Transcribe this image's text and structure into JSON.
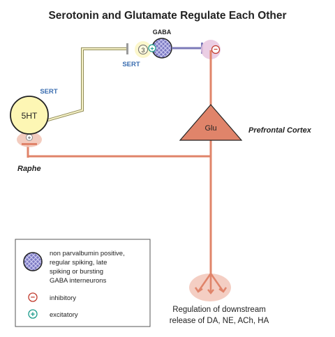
{
  "title": "Serotonin and Glutamate Regulate Each Other",
  "labels": {
    "gaba": "GABA",
    "sert_top": "SERT",
    "sert_left": "SERT",
    "receptor_3": "3",
    "neuron_5ht": "5HT",
    "glu": "Glu",
    "prefrontal_cortex": "Prefrontal Cortex",
    "raphe": "Raphe",
    "downstream_line1": "Regulation of downstream",
    "downstream_line2": "release of DA, NE, ACh, HA"
  },
  "signs": {
    "plus": "+",
    "minus": "−"
  },
  "legend": {
    "gaba_line1": "non parvalbumin positive,",
    "gaba_line2": "regular spiking, late",
    "gaba_line3": "spiking or bursting",
    "gaba_line4": "GABA interneurons",
    "inhibitory": "inhibitory",
    "excitatory": "excitatory"
  },
  "colors": {
    "axon": "#e0846a",
    "glu_fill": "#e0846a",
    "neuron_5ht_fill": "#fdf6b4",
    "gaba_fill": "#7a78c2",
    "gaba_line": "#7c7ab8",
    "serotonin_line": "#d8d39a",
    "sert_text": "#3a6db0",
    "inhibit_sign": "#c0392b",
    "excite_sign": "#1a9a8a"
  },
  "icons": [
    "gaba-interneuron-icon",
    "inhibitory-icon",
    "excitatory-icon"
  ]
}
